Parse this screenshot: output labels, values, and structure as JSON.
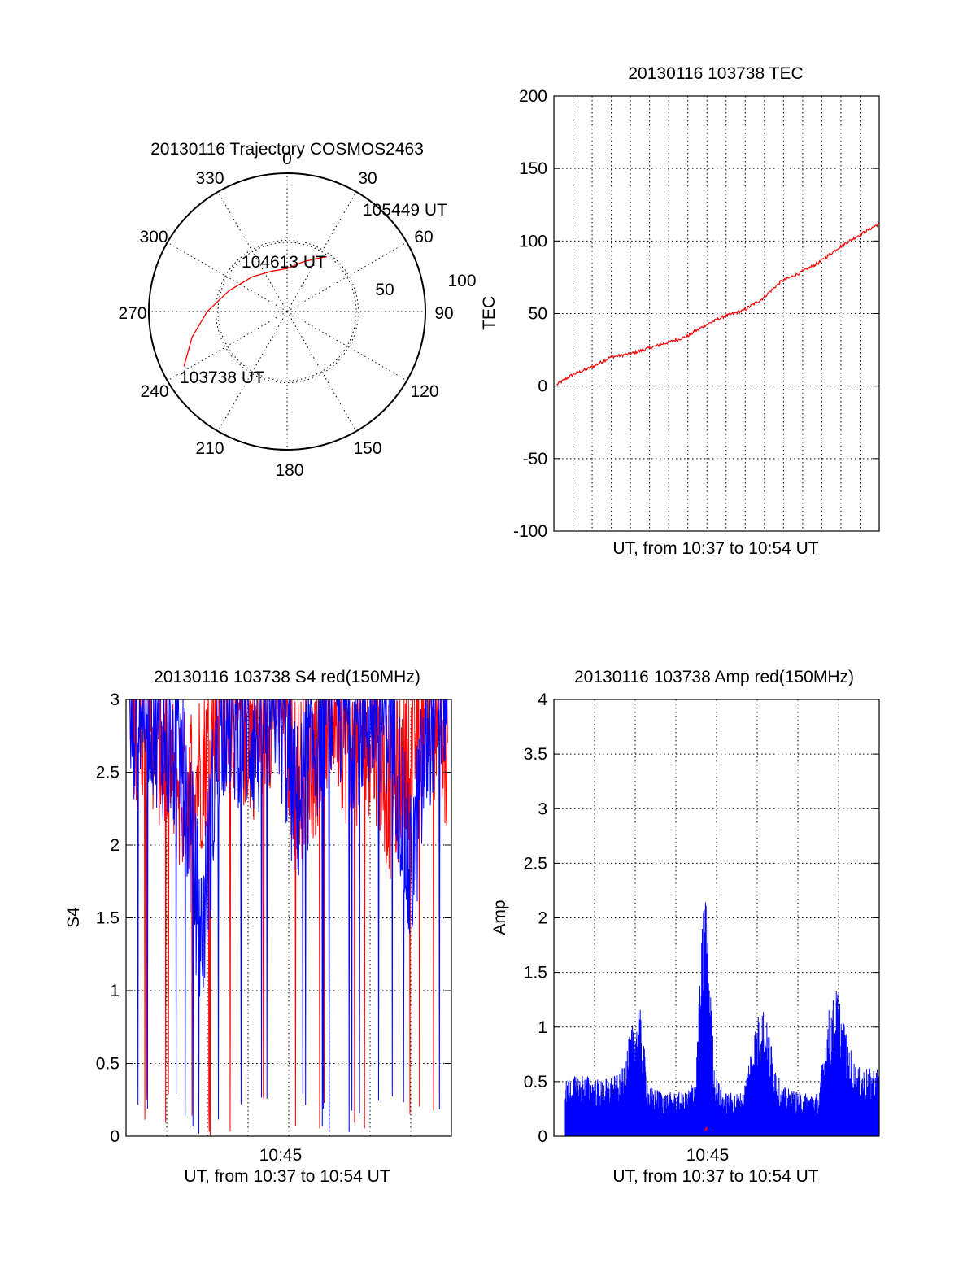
{
  "chart_data": [
    {
      "type": "polar",
      "title": "20130116 Trajectory COSMOS2463",
      "azimuth_labels": [
        "0",
        "30",
        "60",
        "90",
        "120",
        "150",
        "180",
        "210",
        "240",
        "270",
        "300",
        "330"
      ],
      "radial_labels": [
        "50",
        "100"
      ],
      "series": [
        {
          "color": "#ff0000",
          "points_az_el": [
            [
              242,
              14
            ],
            [
              255,
              26
            ],
            [
              270,
              38
            ],
            [
              290,
              50
            ],
            [
              315,
              58
            ],
            [
              340,
              62
            ],
            [
              0,
              62
            ],
            [
              18,
              56
            ],
            [
              30,
              50
            ],
            [
              36,
              46
            ]
          ]
        }
      ],
      "annotations": [
        "103738 UT",
        "104613 UT",
        "105449 UT"
      ]
    },
    {
      "type": "line",
      "title": "20130116 103738 TEC",
      "xlabel": "UT, from 10:37 to 10:54 UT",
      "ylabel": "TEC",
      "ylim": [
        -100,
        200
      ],
      "yticks": [
        "200",
        "150",
        "100",
        "50",
        "0",
        "-50",
        "-100"
      ],
      "xlim_minutes": [
        0,
        17.2
      ],
      "grid": true,
      "series": [
        {
          "color": "#ff0000",
          "x_minutes": [
            0.15,
            1,
            2,
            3,
            4,
            5,
            6,
            7,
            8,
            9,
            10,
            11,
            12,
            13,
            14,
            15,
            16,
            17.2
          ],
          "y": [
            1,
            8,
            13,
            20,
            22,
            26,
            30,
            34,
            42,
            48,
            52,
            60,
            72,
            78,
            85,
            95,
            103,
            112
          ]
        }
      ]
    },
    {
      "type": "line",
      "title": "20130116 103738 S4 red(150MHz)",
      "xlabel": "UT, from 10:37 to 10:54 UT",
      "ylabel": "S4",
      "ylim": [
        0,
        3
      ],
      "yticks": [
        "3",
        "2.5",
        "2",
        "1.5",
        "1",
        "0.5",
        "0"
      ],
      "xticks": [
        "10:45"
      ],
      "xlim_minutes": [
        0,
        17.2
      ],
      "grid": true,
      "series": [
        {
          "color": "#ff0000",
          "x_minutes": [
            0.2,
            1,
            2,
            3,
            4,
            5,
            6,
            7,
            8,
            9,
            10,
            11,
            12,
            13,
            14,
            15,
            16,
            17
          ],
          "y": [
            2.5,
            2.7,
            2.4,
            2.1,
            2.3,
            2.8,
            2.6,
            2.5,
            2.9,
            2.2,
            2.4,
            2.8,
            2.3,
            2.6,
            2.1,
            2.4,
            2.8,
            2.3
          ]
        },
        {
          "color": "#0000ff",
          "x_minutes": [
            0.2,
            1,
            2,
            3,
            4,
            5,
            6,
            7,
            8,
            9,
            10,
            11,
            12,
            13,
            14,
            15,
            16,
            17
          ],
          "y": [
            2.6,
            2.8,
            2.5,
            2.3,
            1.1,
            2.7,
            2.6,
            2.5,
            2.8,
            2.0,
            2.5,
            2.8,
            2.6,
            2.7,
            2.7,
            1.5,
            2.6,
            2.9
          ]
        }
      ]
    },
    {
      "type": "line",
      "title": "20130116 103738 Amp red(150MHz)",
      "xlabel": "UT, from 10:37 to 10:54 UT",
      "ylabel": "Amp",
      "ylim": [
        0,
        4
      ],
      "yticks": [
        "4",
        "3.5",
        "3",
        "2.5",
        "2",
        "1.5",
        "1",
        "0.5",
        "0"
      ],
      "xticks": [
        "10:45"
      ],
      "xlim_minutes": [
        0,
        17.2
      ],
      "grid": true,
      "series": [
        {
          "color": "#0000ff",
          "x_minutes": [
            0.6,
            1.5,
            2.5,
            3.5,
            4,
            4.5,
            5,
            6,
            7,
            7.5,
            8,
            8.5,
            9,
            10,
            10.5,
            11,
            12,
            13,
            14,
            14.5,
            15,
            15.5,
            16,
            17.2
          ],
          "y": [
            0.45,
            0.5,
            0.45,
            0.5,
            0.8,
            1.1,
            0.4,
            0.35,
            0.35,
            0.5,
            2.2,
            0.5,
            0.35,
            0.35,
            0.8,
            1.1,
            0.4,
            0.35,
            0.35,
            1.0,
            1.2,
            0.8,
            0.55,
            0.55
          ]
        },
        {
          "color": "#ff0000",
          "x_minutes": [
            8,
            8.1
          ],
          "y": [
            0.05,
            0.08
          ]
        }
      ]
    }
  ]
}
